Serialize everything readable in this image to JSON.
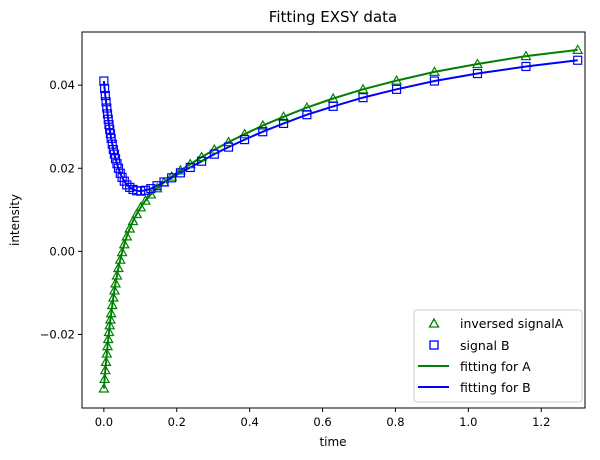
{
  "chart_data": {
    "type": "scatter",
    "title": "Fitting EXSY data",
    "xlabel": "time",
    "ylabel": "intensity",
    "xlim": [
      -0.06,
      1.32
    ],
    "ylim": [
      -0.0377,
      0.0528
    ],
    "grid": false,
    "legend_placement": "lower-right",
    "x_ticks": [
      "0.0",
      "0.2",
      "0.4",
      "0.6",
      "0.8",
      "1.0",
      "1.2"
    ],
    "x_tick_values": [
      0,
      0.2,
      0.4,
      0.6,
      0.8,
      1.0,
      1.2
    ],
    "y_ticks": [
      "−0.02",
      "0.00",
      "0.02",
      "0.04"
    ],
    "y_tick_values": [
      -0.02,
      0,
      0.02,
      0.04
    ],
    "x": [
      0,
      0.002,
      0.004,
      0.006,
      0.008,
      0.01,
      0.012,
      0.014,
      0.016,
      0.018,
      0.02,
      0.023,
      0.026,
      0.029,
      0.032,
      0.036,
      0.04,
      0.045,
      0.05,
      0.056,
      0.063,
      0.071,
      0.08,
      0.09,
      0.101,
      0.114,
      0.129,
      0.146,
      0.165,
      0.186,
      0.21,
      0.237,
      0.268,
      0.303,
      0.342,
      0.386,
      0.436,
      0.493,
      0.557,
      0.629,
      0.711,
      0.803,
      0.907,
      1.025,
      1.158,
      1.3
    ],
    "series": [
      {
        "name": "inversed signalA",
        "kind": "marker",
        "marker": "triangle",
        "color": "#008000",
        "values": [
          -0.033,
          -0.0307,
          -0.0286,
          -0.0266,
          -0.0246,
          -0.0228,
          -0.0211,
          -0.0194,
          -0.0178,
          -0.0164,
          -0.0149,
          -0.0129,
          -0.0111,
          -0.0094,
          -0.0077,
          -0.0058,
          -0.004,
          -0.002,
          -0.0002,
          0.0017,
          0.0036,
          0.0055,
          0.0073,
          0.009,
          0.0106,
          0.0122,
          0.0137,
          0.0152,
          0.0166,
          0.018,
          0.0195,
          0.021,
          0.0227,
          0.0245,
          0.0263,
          0.0282,
          0.0303,
          0.0324,
          0.0346,
          0.0368,
          0.039,
          0.0411,
          0.0432,
          0.0451,
          0.047,
          0.0485
        ]
      },
      {
        "name": "signal B",
        "kind": "marker",
        "marker": "square",
        "color": "#0000ff",
        "values": [
          0.041,
          0.0392,
          0.0375,
          0.036,
          0.0345,
          0.0331,
          0.0318,
          0.0305,
          0.0294,
          0.0283,
          0.0272,
          0.0258,
          0.0245,
          0.0234,
          0.0223,
          0.0211,
          0.02,
          0.0188,
          0.0178,
          0.0169,
          0.016,
          0.0154,
          0.0149,
          0.0146,
          0.0145,
          0.0147,
          0.0151,
          0.0158,
          0.0167,
          0.0177,
          0.0189,
          0.0202,
          0.0217,
          0.0234,
          0.0251,
          0.0269,
          0.0288,
          0.0308,
          0.0329,
          0.0349,
          0.037,
          0.039,
          0.041,
          0.0428,
          0.0445,
          0.046
        ]
      },
      {
        "name": "fitting for A",
        "kind": "line",
        "color": "#008000",
        "values": [
          -0.033,
          -0.0307,
          -0.0286,
          -0.0266,
          -0.0246,
          -0.0228,
          -0.0211,
          -0.0194,
          -0.0178,
          -0.0164,
          -0.0149,
          -0.0129,
          -0.0111,
          -0.0094,
          -0.0077,
          -0.0058,
          -0.004,
          -0.002,
          -0.0002,
          0.0017,
          0.0036,
          0.0055,
          0.0073,
          0.009,
          0.0106,
          0.0122,
          0.0137,
          0.0152,
          0.0166,
          0.018,
          0.0195,
          0.021,
          0.0227,
          0.0245,
          0.0263,
          0.0282,
          0.0303,
          0.0324,
          0.0346,
          0.0368,
          0.039,
          0.0411,
          0.0432,
          0.0451,
          0.047,
          0.0485
        ]
      },
      {
        "name": "fitting for B",
        "kind": "line",
        "color": "#0000ff",
        "values": [
          0.041,
          0.0392,
          0.0375,
          0.036,
          0.0345,
          0.0331,
          0.0318,
          0.0305,
          0.0294,
          0.0283,
          0.0272,
          0.0258,
          0.0245,
          0.0234,
          0.0223,
          0.0211,
          0.02,
          0.0188,
          0.0178,
          0.0169,
          0.016,
          0.0154,
          0.0149,
          0.0146,
          0.0145,
          0.0147,
          0.0151,
          0.0158,
          0.0167,
          0.0177,
          0.0189,
          0.0202,
          0.0217,
          0.0234,
          0.0251,
          0.0269,
          0.0288,
          0.0308,
          0.0329,
          0.0349,
          0.037,
          0.039,
          0.041,
          0.0428,
          0.0445,
          0.046
        ]
      }
    ]
  }
}
